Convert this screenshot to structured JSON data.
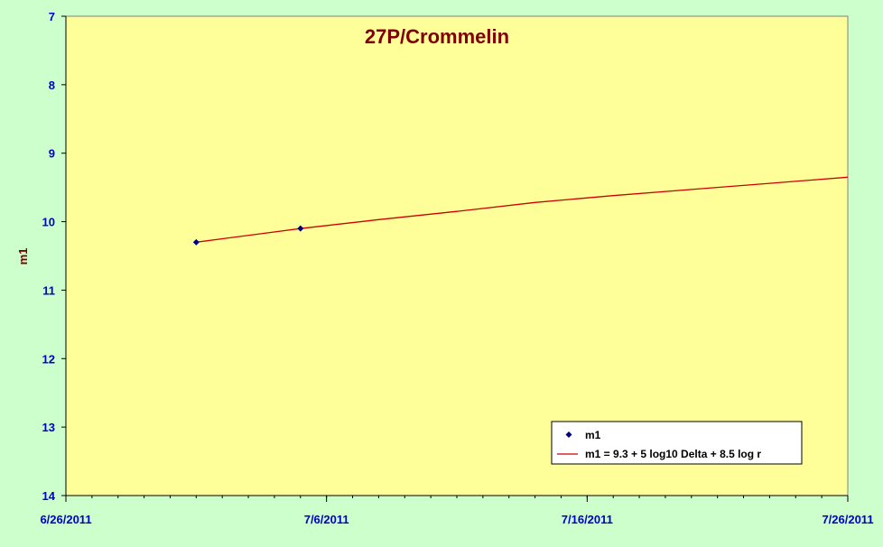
{
  "colors": {
    "background": "#ccffcc",
    "plot_area": "#ffff99",
    "title": "#800000",
    "axis_text": "#0000cc",
    "ylabel": "#800000",
    "marker": "#000080",
    "line": "#cc0000"
  },
  "chart_data": {
    "type": "scatter",
    "title": "27P/Crommelin",
    "xlabel": "",
    "ylabel": "m1",
    "x_axis": {
      "type": "date",
      "min": "2011-06-26",
      "max": "2011-07-26",
      "major_ticks": [
        "6/26/2011",
        "7/6/2011",
        "7/16/2011",
        "7/26/2011"
      ],
      "minor_tick_days": 1
    },
    "y_axis": {
      "min": 7,
      "max": 14,
      "reversed": true,
      "ticks": [
        7,
        8,
        9,
        10,
        11,
        12,
        13,
        14
      ]
    },
    "grid": false,
    "legend_position": "bottom-right",
    "series": [
      {
        "name": "m1",
        "kind": "markers",
        "marker": "diamond",
        "points": [
          {
            "x": "2011-07-01",
            "y": 10.3
          },
          {
            "x": "2011-07-05",
            "y": 10.1
          }
        ]
      },
      {
        "name": "m1 = 9.3 + 5 log10 Delta + 8.5 log r",
        "kind": "line",
        "points": [
          {
            "x": "2011-07-01",
            "y": 10.3
          },
          {
            "x": "2011-07-05",
            "y": 10.1
          },
          {
            "x": "2011-07-08",
            "y": 9.97
          },
          {
            "x": "2011-07-11",
            "y": 9.85
          },
          {
            "x": "2011-07-14",
            "y": 9.72
          },
          {
            "x": "2011-07-17",
            "y": 9.62
          },
          {
            "x": "2011-07-20",
            "y": 9.53
          },
          {
            "x": "2011-07-23",
            "y": 9.44
          },
          {
            "x": "2011-07-26",
            "y": 9.35
          }
        ]
      }
    ]
  }
}
